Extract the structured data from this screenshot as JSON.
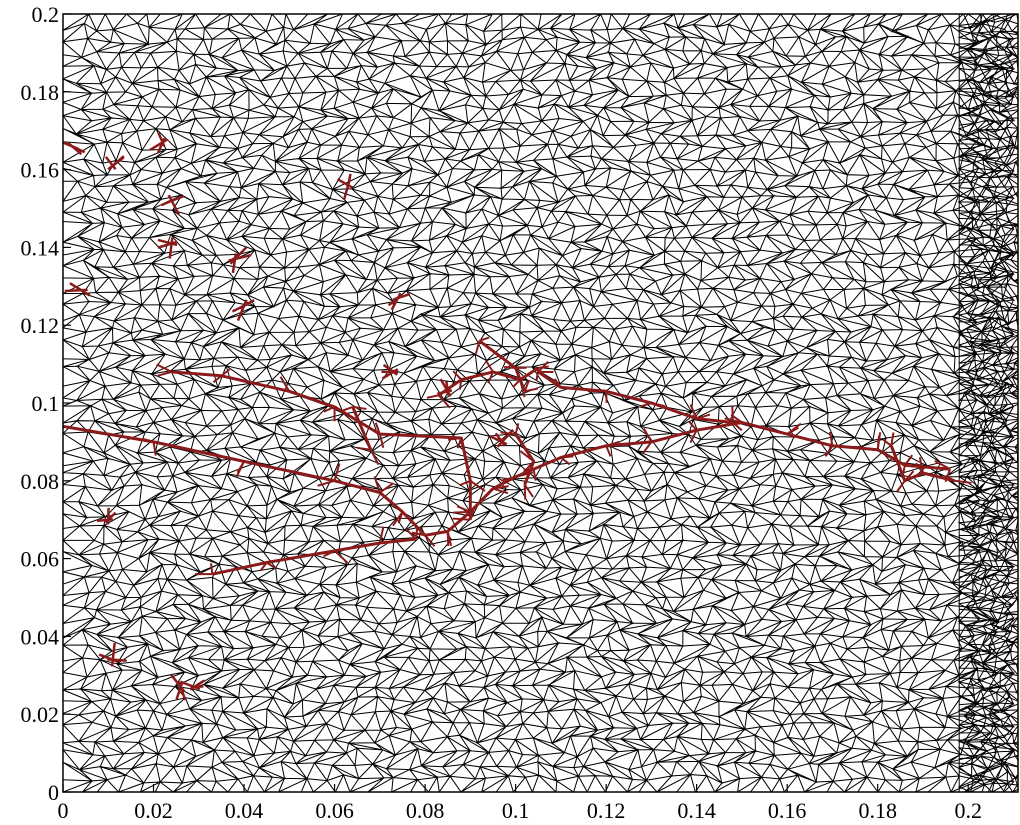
{
  "figure": {
    "description_free": true,
    "colors": {
      "mesh": "#000000",
      "crack": "#8b1a1a",
      "background": "#ffffff"
    }
  },
  "chart_data": {
    "type": "mesh",
    "xlim": [
      0,
      0.211
    ],
    "ylim": [
      0,
      0.2
    ],
    "x_ticks": [
      0,
      0.02,
      0.04,
      0.06,
      0.08,
      0.1,
      0.12,
      0.14,
      0.16,
      0.18,
      0.2
    ],
    "y_ticks": [
      0,
      0.02,
      0.04,
      0.06,
      0.08,
      0.1,
      0.12,
      0.14,
      0.16,
      0.18,
      0.2
    ],
    "x_tick_labels": [
      "0",
      "0.02",
      "0.04",
      "0.06",
      "0.08",
      "0.1",
      "0.12",
      "0.14",
      "0.16",
      "0.18",
      "0.2"
    ],
    "y_tick_labels": [
      "0",
      "0.02",
      "0.04",
      "0.06",
      "0.08",
      "0.1",
      "0.12",
      "0.14",
      "0.16",
      "0.18",
      "0.2"
    ],
    "mesh_spacing": 0.004,
    "refined_strip_x": [
      0.198,
      0.211
    ],
    "crack_paths": [
      [
        [
          0.0,
          0.094
        ],
        [
          0.02,
          0.09
        ],
        [
          0.04,
          0.085
        ],
        [
          0.06,
          0.08
        ],
        [
          0.07,
          0.077
        ],
        [
          0.075,
          0.072
        ],
        [
          0.08,
          0.066
        ],
        [
          0.085,
          0.067
        ],
        [
          0.09,
          0.072
        ],
        [
          0.095,
          0.078
        ],
        [
          0.1,
          0.081
        ],
        [
          0.104,
          0.083
        ],
        [
          0.11,
          0.086
        ],
        [
          0.12,
          0.089
        ],
        [
          0.13,
          0.09
        ],
        [
          0.14,
          0.093
        ],
        [
          0.15,
          0.095
        ],
        [
          0.16,
          0.092
        ],
        [
          0.17,
          0.089
        ],
        [
          0.18,
          0.088
        ],
        [
          0.186,
          0.084
        ],
        [
          0.196,
          0.083
        ]
      ],
      [
        [
          0.033,
          0.056
        ],
        [
          0.045,
          0.059
        ],
        [
          0.06,
          0.062
        ],
        [
          0.07,
          0.064
        ],
        [
          0.078,
          0.065
        ]
      ],
      [
        [
          0.024,
          0.108
        ],
        [
          0.035,
          0.107
        ],
        [
          0.05,
          0.103
        ],
        [
          0.06,
          0.099
        ],
        [
          0.07,
          0.092
        ],
        [
          0.088,
          0.091
        ],
        [
          0.09,
          0.08
        ],
        [
          0.09,
          0.07
        ]
      ],
      [
        [
          0.083,
          0.102
        ],
        [
          0.088,
          0.106
        ],
        [
          0.095,
          0.108
        ],
        [
          0.101,
          0.106
        ],
        [
          0.105,
          0.109
        ]
      ],
      [
        [
          0.105,
          0.108
        ],
        [
          0.11,
          0.104
        ],
        [
          0.12,
          0.103
        ],
        [
          0.13,
          0.1
        ],
        [
          0.14,
          0.096
        ],
        [
          0.148,
          0.095
        ]
      ],
      [
        [
          0.1,
          0.092
        ],
        [
          0.104,
          0.085
        ],
        [
          0.102,
          0.079
        ]
      ],
      [
        [
          0.183,
          0.089
        ],
        [
          0.186,
          0.08
        ],
        [
          0.19,
          0.082
        ],
        [
          0.197,
          0.08
        ]
      ],
      [
        [
          0.064,
          0.099
        ],
        [
          0.068,
          0.088
        ]
      ],
      [
        [
          0.092,
          0.116
        ],
        [
          0.1,
          0.109
        ],
        [
          0.102,
          0.103
        ]
      ]
    ],
    "crack_stars": [
      [
        0.002,
        0.166
      ],
      [
        0.011,
        0.161
      ],
      [
        0.022,
        0.167
      ],
      [
        0.024,
        0.152
      ],
      [
        0.024,
        0.141
      ],
      [
        0.038,
        0.137
      ],
      [
        0.04,
        0.125
      ],
      [
        0.063,
        0.156
      ],
      [
        0.074,
        0.127
      ],
      [
        0.073,
        0.108
      ],
      [
        0.004,
        0.129
      ],
      [
        0.01,
        0.07
      ],
      [
        0.011,
        0.034
      ],
      [
        0.026,
        0.027
      ],
      [
        0.029,
        0.027
      ],
      [
        0.085,
        0.103
      ],
      [
        0.097,
        0.09
      ]
    ]
  }
}
